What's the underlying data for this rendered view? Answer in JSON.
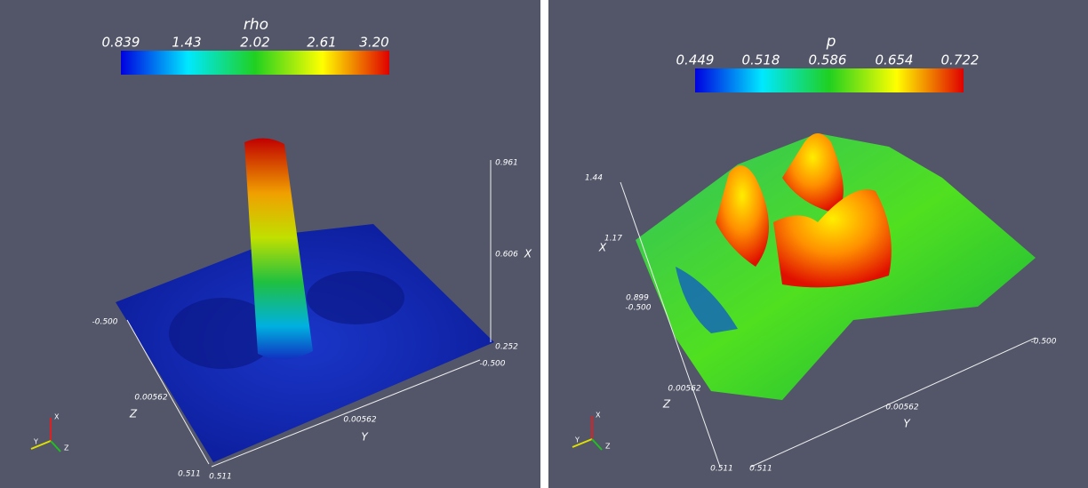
{
  "panels": [
    {
      "colorbar": {
        "title": "rho",
        "labels": [
          "0.839",
          "1.43",
          "2.02",
          "2.61",
          "3.20"
        ]
      },
      "axis_labels": {
        "x": "X",
        "y": "Y",
        "z": "Z"
      },
      "x_ticks": [
        "0.252",
        "0.606",
        "0.961"
      ],
      "y_ticks": [
        "0.511",
        "0.00562",
        "-0.500"
      ],
      "z_ticks": [
        "-0.500",
        "0.00562",
        "0.511"
      ],
      "triad": [
        "X",
        "Y",
        "Z"
      ]
    },
    {
      "colorbar": {
        "title": "p",
        "labels": [
          "0.449",
          "0.518",
          "0.586",
          "0.654",
          "0.722"
        ]
      },
      "axis_labels": {
        "x": "X",
        "y": "Y",
        "z": "Z"
      },
      "x_ticks": [
        "0.899",
        "1.17",
        "1.44"
      ],
      "y_ticks": [
        "0.511",
        "0.00562",
        "-0.500"
      ],
      "z_ticks": [
        "-0.500",
        "0.00562",
        "0.511"
      ],
      "triad": [
        "X",
        "Y",
        "Z"
      ]
    }
  ]
}
